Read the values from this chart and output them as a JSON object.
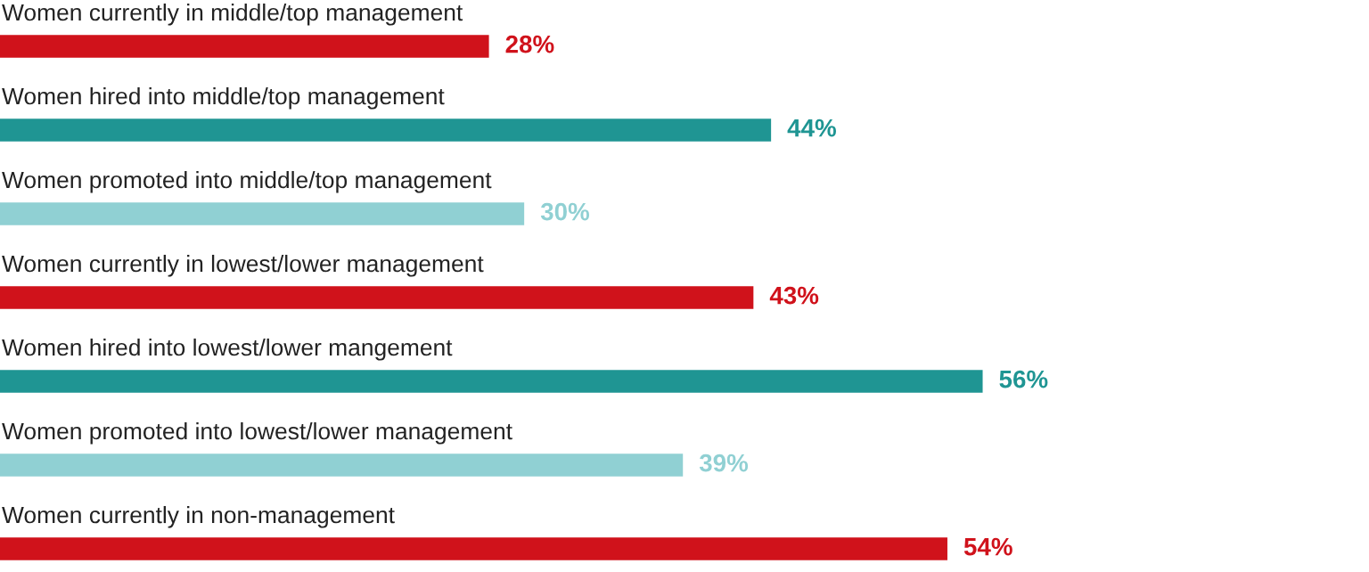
{
  "chart_data": {
    "type": "bar",
    "orientation": "horizontal",
    "data_labels": true,
    "categories": [
      "Women currently in middle/top management",
      "Women hired into middle/top management",
      "Women promoted into middle/top management",
      "Women currently in lowest/lower management",
      "Women hired into lowest/lower mangement",
      "Women promoted into lowest/lower management",
      "Women currently in non-management"
    ],
    "values": [
      28,
      44,
      30,
      43,
      56,
      39,
      54
    ],
    "colors": [
      "#d0121b",
      "#1f9593",
      "#90d0d3",
      "#d0121b",
      "#1f9593",
      "#90d0d3",
      "#d0121b"
    ],
    "value_labels": [
      "28%",
      "44%",
      "30%",
      "43%",
      "56%",
      "39%",
      "54%"
    ]
  }
}
